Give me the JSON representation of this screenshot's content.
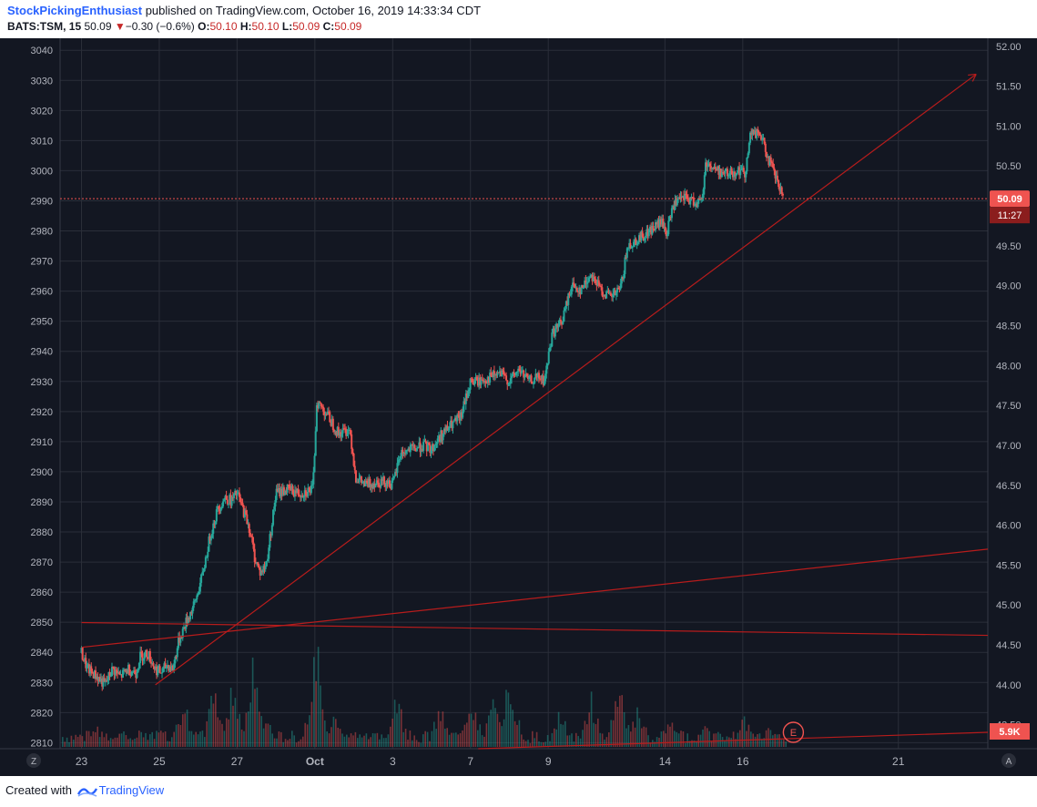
{
  "header": {
    "author": "StockPickingEnthusiast",
    "published": " published on TradingView.com, October 16, 2019 14:33:34 CDT",
    "symbol": "BATS:TSM, 15",
    "last": "50.09",
    "change": "−0.30 (−0.6%)",
    "o_label": "O:",
    "o_value": "50.10",
    "h_label": "H:",
    "h_value": "50.10",
    "l_label": "L:",
    "l_value": "50.09",
    "c_label": "C:",
    "c_value": "50.09"
  },
  "footer": {
    "created_with": "Created with",
    "brand": "TradingView"
  },
  "colors": {
    "background": "#131722",
    "grid": "#2a2e39",
    "up": "#26a69a",
    "down": "#ef5350",
    "trendline": "#b71c1c",
    "axis_text": "#b2b5be",
    "price_tag": "#ef5350"
  },
  "chart_data": {
    "type": "candlestick",
    "title": "",
    "left_axis": {
      "range": [
        2808,
        3044
      ],
      "ticks": [
        3040,
        3030,
        3020,
        3010,
        3000,
        2990,
        2980,
        2970,
        2960,
        2950,
        2940,
        2930,
        2920,
        2910,
        2900,
        2890,
        2880,
        2870,
        2860,
        2850,
        2840,
        2830,
        2820,
        2810
      ]
    },
    "right_axis": {
      "range": [
        43.2,
        52.1
      ],
      "ticks": [
        "52.00",
        "51.50",
        "51.00",
        "50.50",
        "50.09",
        "49.50",
        "49.00",
        "48.50",
        "48.00",
        "47.50",
        "47.00",
        "46.50",
        "46.00",
        "45.50",
        "45.00",
        "44.50",
        "44.00",
        "43.50"
      ]
    },
    "x_ticks": [
      "23",
      "25",
      "27",
      "Oct",
      "3",
      "7",
      "9",
      "14",
      "16",
      "21"
    ],
    "x_tick_positions": [
      0,
      2,
      4,
      6,
      8,
      10,
      12,
      15,
      17,
      21
    ],
    "x_range": [
      -0.55,
      23.3
    ],
    "corner_labels": {
      "left": "Z",
      "right": "A"
    },
    "last_price_label": "50.09",
    "countdown_label": "11:27",
    "volume_label": "5.9K",
    "earnings_marker": "E",
    "price_path": [
      [
        0.0,
        44.4
      ],
      [
        0.15,
        44.2
      ],
      [
        0.4,
        44.1
      ],
      [
        0.6,
        44.0
      ],
      [
        0.8,
        44.2
      ],
      [
        1.0,
        44.1
      ],
      [
        1.2,
        44.2
      ],
      [
        1.4,
        44.15
      ],
      [
        1.5,
        44.35
      ],
      [
        1.7,
        44.4
      ],
      [
        1.9,
        44.2
      ],
      [
        2.05,
        44.15
      ],
      [
        2.2,
        44.25
      ],
      [
        2.35,
        44.2
      ],
      [
        2.5,
        44.55
      ],
      [
        2.7,
        44.8
      ],
      [
        2.9,
        45.0
      ],
      [
        3.1,
        45.35
      ],
      [
        3.3,
        45.85
      ],
      [
        3.5,
        46.2
      ],
      [
        3.7,
        46.35
      ],
      [
        3.85,
        46.3
      ],
      [
        4.0,
        46.4
      ],
      [
        4.15,
        46.2
      ],
      [
        4.3,
        46.0
      ],
      [
        4.45,
        45.6
      ],
      [
        4.6,
        45.4
      ],
      [
        4.75,
        45.5
      ],
      [
        5.0,
        46.4
      ],
      [
        5.3,
        46.45
      ],
      [
        5.6,
        46.4
      ],
      [
        5.95,
        46.45
      ],
      [
        6.05,
        47.55
      ],
      [
        6.3,
        47.4
      ],
      [
        6.6,
        47.15
      ],
      [
        6.9,
        47.2
      ],
      [
        7.05,
        46.6
      ],
      [
        7.3,
        46.5
      ],
      [
        7.6,
        46.55
      ],
      [
        7.85,
        46.55
      ],
      [
        8.0,
        46.5
      ],
      [
        8.2,
        46.9
      ],
      [
        8.5,
        46.95
      ],
      [
        8.8,
        47.0
      ],
      [
        9.0,
        46.95
      ],
      [
        9.2,
        47.1
      ],
      [
        9.5,
        47.25
      ],
      [
        9.75,
        47.35
      ],
      [
        10.0,
        47.8
      ],
      [
        10.25,
        47.8
      ],
      [
        10.5,
        47.85
      ],
      [
        10.75,
        47.9
      ],
      [
        11.0,
        47.8
      ],
      [
        11.25,
        47.95
      ],
      [
        11.5,
        47.8
      ],
      [
        11.75,
        47.85
      ],
      [
        11.9,
        47.8
      ],
      [
        12.1,
        48.4
      ],
      [
        12.35,
        48.55
      ],
      [
        12.6,
        49.0
      ],
      [
        12.85,
        48.95
      ],
      [
        13.1,
        49.15
      ],
      [
        13.35,
        48.95
      ],
      [
        13.6,
        48.85
      ],
      [
        13.85,
        48.95
      ],
      [
        14.05,
        49.5
      ],
      [
        14.35,
        49.6
      ],
      [
        14.65,
        49.7
      ],
      [
        14.9,
        49.8
      ],
      [
        15.05,
        49.65
      ],
      [
        15.2,
        50.0
      ],
      [
        15.5,
        50.1
      ],
      [
        15.75,
        50.05
      ],
      [
        15.95,
        50.05
      ],
      [
        16.05,
        50.55
      ],
      [
        16.3,
        50.45
      ],
      [
        16.6,
        50.4
      ],
      [
        16.9,
        50.45
      ],
      [
        17.05,
        50.4
      ],
      [
        17.2,
        50.9
      ],
      [
        17.45,
        50.9
      ],
      [
        17.65,
        50.6
      ],
      [
        17.85,
        50.35
      ],
      [
        17.95,
        50.2
      ],
      [
        18.05,
        50.09
      ]
    ],
    "volume_bars": [
      [
        0.4,
        0.18
      ],
      [
        1.0,
        0.1
      ],
      [
        2.0,
        0.22
      ],
      [
        2.6,
        0.42
      ],
      [
        3.4,
        0.55
      ],
      [
        3.9,
        0.62
      ],
      [
        4.4,
        0.74
      ],
      [
        4.7,
        0.3
      ],
      [
        6.0,
        0.96
      ],
      [
        6.5,
        0.35
      ],
      [
        7.3,
        0.15
      ],
      [
        8.1,
        0.45
      ],
      [
        9.2,
        0.35
      ],
      [
        10.0,
        0.5
      ],
      [
        10.55,
        0.4
      ],
      [
        11.0,
        0.67
      ],
      [
        12.3,
        0.32
      ],
      [
        13.1,
        0.45
      ],
      [
        13.8,
        0.6
      ],
      [
        14.3,
        0.35
      ],
      [
        15.1,
        0.25
      ],
      [
        16.0,
        0.18
      ],
      [
        16.5,
        0.1
      ],
      [
        17.0,
        0.28
      ],
      [
        17.7,
        0.2
      ]
    ],
    "trendlines": [
      [
        [
          1.9,
          44.0
        ],
        [
          23.0,
          51.65
        ]
      ],
      [
        [
          0.0,
          44.78
        ],
        [
          23.3,
          44.62
        ]
      ],
      [
        [
          0.0,
          44.47
        ],
        [
          23.3,
          45.7
        ]
      ]
    ],
    "price_level": 50.09,
    "grid": true
  }
}
